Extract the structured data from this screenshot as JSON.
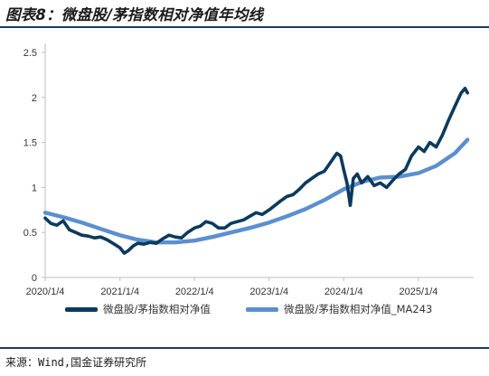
{
  "figure": {
    "title": "图表8：微盘股/茅指数相对净值年均线",
    "source": "来源：Wind,国金证券研究所",
    "colors": {
      "series_main": "#0b3a5e",
      "series_ma": "#5b8fcf",
      "axis": "#bfbfbf",
      "rule": "#1f3864"
    }
  },
  "chart_data": {
    "type": "line",
    "title": "",
    "xlabel": "",
    "ylabel": "",
    "ylim": [
      0,
      2.5
    ],
    "yticks": [
      0,
      0.5,
      1,
      1.5,
      2,
      2.5
    ],
    "ytick_labels": [
      "0",
      "0.5",
      "1",
      "1.5",
      "2",
      "2.5"
    ],
    "xlim": [
      "2020-01-04",
      "2025-10-01"
    ],
    "xticks": [
      "2020-01-04",
      "2021-01-04",
      "2022-01-04",
      "2023-01-04",
      "2024-01-04",
      "2025-01-04"
    ],
    "xtick_labels": [
      "2020/1/4",
      "2021/1/4",
      "2022/1/4",
      "2023/1/4",
      "2024/1/4",
      "2025/1/4"
    ],
    "grid": false,
    "legend_position": "bottom",
    "series": [
      {
        "name": "微盘股/茅指数相对净值",
        "color": "#0b3a5e",
        "points": [
          [
            "2020-01-04",
            0.66
          ],
          [
            "2020-02-01",
            0.6
          ],
          [
            "2020-03-01",
            0.58
          ],
          [
            "2020-04-01",
            0.63
          ],
          [
            "2020-05-01",
            0.53
          ],
          [
            "2020-06-01",
            0.5
          ],
          [
            "2020-07-01",
            0.47
          ],
          [
            "2020-08-01",
            0.46
          ],
          [
            "2020-09-01",
            0.44
          ],
          [
            "2020-10-01",
            0.45
          ],
          [
            "2020-11-01",
            0.42
          ],
          [
            "2020-12-01",
            0.38
          ],
          [
            "2021-01-04",
            0.33
          ],
          [
            "2021-01-25",
            0.27
          ],
          [
            "2021-02-15",
            0.3
          ],
          [
            "2021-03-10",
            0.35
          ],
          [
            "2021-04-01",
            0.38
          ],
          [
            "2021-05-01",
            0.37
          ],
          [
            "2021-06-01",
            0.39
          ],
          [
            "2021-07-01",
            0.38
          ],
          [
            "2021-08-01",
            0.43
          ],
          [
            "2021-09-01",
            0.47
          ],
          [
            "2021-10-01",
            0.45
          ],
          [
            "2021-11-01",
            0.44
          ],
          [
            "2021-12-01",
            0.5
          ],
          [
            "2022-01-04",
            0.55
          ],
          [
            "2022-02-01",
            0.57
          ],
          [
            "2022-03-01",
            0.62
          ],
          [
            "2022-04-01",
            0.6
          ],
          [
            "2022-05-01",
            0.55
          ],
          [
            "2022-06-01",
            0.55
          ],
          [
            "2022-07-01",
            0.6
          ],
          [
            "2022-08-01",
            0.62
          ],
          [
            "2022-09-01",
            0.64
          ],
          [
            "2022-10-01",
            0.68
          ],
          [
            "2022-11-01",
            0.72
          ],
          [
            "2022-12-01",
            0.7
          ],
          [
            "2023-01-04",
            0.75
          ],
          [
            "2023-02-01",
            0.8
          ],
          [
            "2023-03-01",
            0.85
          ],
          [
            "2023-04-01",
            0.9
          ],
          [
            "2023-05-01",
            0.92
          ],
          [
            "2023-06-01",
            0.98
          ],
          [
            "2023-07-01",
            1.05
          ],
          [
            "2023-08-01",
            1.1
          ],
          [
            "2023-09-01",
            1.15
          ],
          [
            "2023-10-01",
            1.18
          ],
          [
            "2023-11-01",
            1.28
          ],
          [
            "2023-12-01",
            1.38
          ],
          [
            "2023-12-20",
            1.35
          ],
          [
            "2024-01-04",
            1.2
          ],
          [
            "2024-01-20",
            1.05
          ],
          [
            "2024-02-05",
            0.8
          ],
          [
            "2024-02-20",
            1.1
          ],
          [
            "2024-03-10",
            1.15
          ],
          [
            "2024-04-01",
            1.05
          ],
          [
            "2024-05-01",
            1.12
          ],
          [
            "2024-06-01",
            1.02
          ],
          [
            "2024-07-01",
            1.05
          ],
          [
            "2024-08-01",
            1.0
          ],
          [
            "2024-09-01",
            1.08
          ],
          [
            "2024-10-01",
            1.15
          ],
          [
            "2024-11-01",
            1.2
          ],
          [
            "2024-12-01",
            1.35
          ],
          [
            "2025-01-04",
            1.45
          ],
          [
            "2025-02-01",
            1.4
          ],
          [
            "2025-03-01",
            1.5
          ],
          [
            "2025-04-01",
            1.45
          ],
          [
            "2025-05-01",
            1.58
          ],
          [
            "2025-06-01",
            1.75
          ],
          [
            "2025-07-01",
            1.9
          ],
          [
            "2025-08-01",
            2.05
          ],
          [
            "2025-08-20",
            2.1
          ],
          [
            "2025-09-01",
            2.05
          ]
        ]
      },
      {
        "name": "微盘股/茅指数相对净值_MA243",
        "color": "#5b8fcf",
        "points": [
          [
            "2020-01-04",
            0.72
          ],
          [
            "2020-04-01",
            0.67
          ],
          [
            "2020-07-01",
            0.61
          ],
          [
            "2020-10-01",
            0.54
          ],
          [
            "2021-01-04",
            0.47
          ],
          [
            "2021-04-01",
            0.42
          ],
          [
            "2021-07-01",
            0.39
          ],
          [
            "2021-10-01",
            0.39
          ],
          [
            "2022-01-04",
            0.41
          ],
          [
            "2022-04-01",
            0.45
          ],
          [
            "2022-07-01",
            0.5
          ],
          [
            "2022-10-01",
            0.55
          ],
          [
            "2023-01-04",
            0.61
          ],
          [
            "2023-04-01",
            0.68
          ],
          [
            "2023-07-01",
            0.76
          ],
          [
            "2023-10-01",
            0.86
          ],
          [
            "2024-01-04",
            0.98
          ],
          [
            "2024-04-01",
            1.06
          ],
          [
            "2024-07-01",
            1.11
          ],
          [
            "2024-10-01",
            1.12
          ],
          [
            "2025-01-04",
            1.16
          ],
          [
            "2025-04-01",
            1.24
          ],
          [
            "2025-07-01",
            1.38
          ],
          [
            "2025-09-01",
            1.53
          ]
        ]
      }
    ]
  }
}
